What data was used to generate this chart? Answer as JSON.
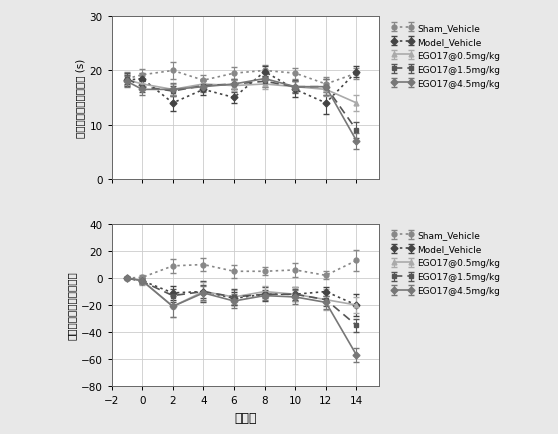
{
  "x": [
    -1,
    0,
    2,
    4,
    6,
    8,
    10,
    12,
    14
  ],
  "top": {
    "ylabel": "双眼泪膜破裂时间均値 (s)",
    "ylim": [
      0,
      30
    ],
    "yticks": [
      0,
      10,
      20,
      30
    ],
    "series": {
      "Sham_Vehicle": {
        "y": [
          18.5,
          19.2,
          20.0,
          18.2,
          19.5,
          20.0,
          19.5,
          17.5,
          19.5
        ],
        "yerr": [
          1.2,
          1.0,
          1.5,
          1.0,
          1.2,
          1.0,
          1.0,
          1.2,
          1.0
        ],
        "linestyle": "dotted",
        "marker": "o",
        "color": "#888888"
      },
      "Model_Vehicle": {
        "y": [
          18.2,
          18.5,
          14.0,
          16.5,
          15.0,
          19.8,
          16.5,
          14.0,
          19.8
        ],
        "yerr": [
          1.0,
          1.0,
          1.5,
          1.0,
          1.0,
          1.0,
          1.5,
          2.0,
          1.0
        ],
        "linestyle": "dotted",
        "marker": "D",
        "color": "#444444"
      },
      "EGO17@0.5mg/kg": {
        "y": [
          18.3,
          17.5,
          16.5,
          17.5,
          17.2,
          17.5,
          17.0,
          16.5,
          14.0
        ],
        "yerr": [
          1.0,
          1.0,
          1.0,
          1.0,
          1.0,
          1.0,
          1.0,
          1.2,
          1.5
        ],
        "linestyle": "solid",
        "marker": "^",
        "color": "#aaaaaa"
      },
      "EGO17@1.5mg/kg": {
        "y": [
          18.5,
          17.0,
          16.2,
          17.2,
          17.5,
          18.0,
          17.0,
          17.0,
          9.0
        ],
        "yerr": [
          1.0,
          1.0,
          1.0,
          1.0,
          1.0,
          1.0,
          1.2,
          1.5,
          1.5
        ],
        "linestyle": "dashed",
        "marker": "s",
        "color": "#555555"
      },
      "EGO17@4.5mg/kg": {
        "y": [
          18.0,
          16.5,
          16.5,
          17.0,
          17.5,
          18.5,
          17.0,
          17.0,
          7.0
        ],
        "yerr": [
          1.0,
          1.0,
          1.2,
          1.0,
          1.0,
          1.0,
          1.0,
          1.5,
          1.5
        ],
        "linestyle": "solid",
        "marker": "D",
        "color": "#777777"
      }
    }
  },
  "bottom": {
    "ylabel": "泪膜破裂时间变化百分比",
    "ylim": [
      -80,
      40
    ],
    "yticks": [
      -80,
      -60,
      -40,
      -20,
      0,
      20,
      40
    ],
    "series": {
      "Sham_Vehicle": {
        "y": [
          0.0,
          0.5,
          9.0,
          10.0,
          5.0,
          5.0,
          6.0,
          2.0,
          13.0
        ],
        "yerr": [
          0.5,
          2.0,
          5.0,
          5.0,
          5.0,
          3.0,
          5.0,
          3.0,
          8.0
        ],
        "linestyle": "dotted",
        "marker": "o",
        "color": "#888888"
      },
      "Model_Vehicle": {
        "y": [
          0.0,
          -2.0,
          -11.0,
          -10.0,
          -15.0,
          -12.0,
          -12.0,
          -10.0,
          -20.0
        ],
        "yerr": [
          0.5,
          2.0,
          5.0,
          8.0,
          5.0,
          5.0,
          5.0,
          3.0,
          8.0
        ],
        "linestyle": "dotted",
        "marker": "D",
        "color": "#444444"
      },
      "EGO17@0.5mg/kg": {
        "y": [
          0.0,
          -2.0,
          -21.0,
          -10.0,
          -14.0,
          -10.0,
          -12.0,
          -16.0,
          -20.0
        ],
        "yerr": [
          0.5,
          3.0,
          8.0,
          7.0,
          5.0,
          4.0,
          5.0,
          8.0,
          6.0
        ],
        "linestyle": "solid",
        "marker": "^",
        "color": "#aaaaaa"
      },
      "EGO17@1.5mg/kg": {
        "y": [
          0.0,
          -2.5,
          -13.0,
          -10.0,
          -14.0,
          -12.0,
          -12.0,
          -16.0,
          -35.0
        ],
        "yerr": [
          0.5,
          2.0,
          5.0,
          5.0,
          6.0,
          3.0,
          4.0,
          5.0,
          5.0
        ],
        "linestyle": "dashed",
        "marker": "s",
        "color": "#555555"
      },
      "EGO17@4.5mg/kg": {
        "y": [
          0.0,
          -2.0,
          -21.0,
          -11.0,
          -17.0,
          -13.0,
          -14.0,
          -18.0,
          -57.0
        ],
        "yerr": [
          0.5,
          2.0,
          8.0,
          5.0,
          5.0,
          3.0,
          5.0,
          5.0,
          5.0
        ],
        "linestyle": "solid",
        "marker": "D",
        "color": "#777777"
      }
    }
  },
  "xlabel": "实验周",
  "xticks": [
    -2,
    0,
    2,
    4,
    6,
    8,
    10,
    12,
    14
  ],
  "xlim": [
    -2,
    15.5
  ],
  "background_color": "#ffffff",
  "outer_bg": "#e8e8e8",
  "legend_order": [
    "Sham_Vehicle",
    "Model_Vehicle",
    "EGO17@0.5mg/kg",
    "EGO17@1.5mg/kg",
    "EGO17@4.5mg/kg"
  ]
}
